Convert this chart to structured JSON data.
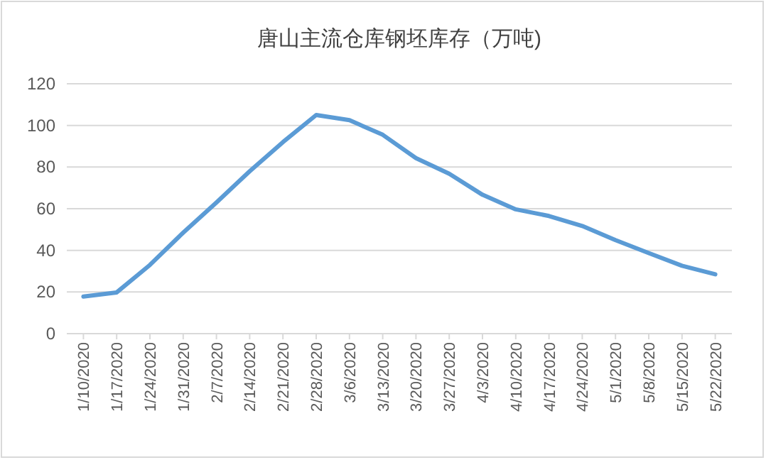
{
  "chart_data": {
    "type": "line",
    "title": "唐山主流仓库钢坯库存（万吨)",
    "categories": [
      "1/10/2020",
      "1/17/2020",
      "1/24/2020",
      "1/31/2020",
      "2/7/2020",
      "2/14/2020",
      "2/21/2020",
      "2/28/2020",
      "3/6/2020",
      "3/13/2020",
      "3/20/2020",
      "3/27/2020",
      "4/3/2020",
      "4/10/2020",
      "4/17/2020",
      "4/24/2020",
      "5/1/2020",
      "5/8/2020",
      "5/15/2020",
      "5/22/2020"
    ],
    "series": [
      {
        "color": "#5b9bd5",
        "values": [
          17.8,
          19.8,
          33,
          48.5,
          63,
          78,
          92,
          105,
          102.5,
          95.5,
          84.3,
          76.8,
          66.7,
          59.7,
          56.5,
          51.7,
          44.9,
          38.7,
          32.6,
          28.5
        ]
      }
    ],
    "ylim": [
      0,
      120
    ],
    "yticks": [
      0,
      20,
      40,
      60,
      80,
      100,
      120
    ],
    "grid": "y",
    "marker": "none",
    "line_style": "solid"
  }
}
